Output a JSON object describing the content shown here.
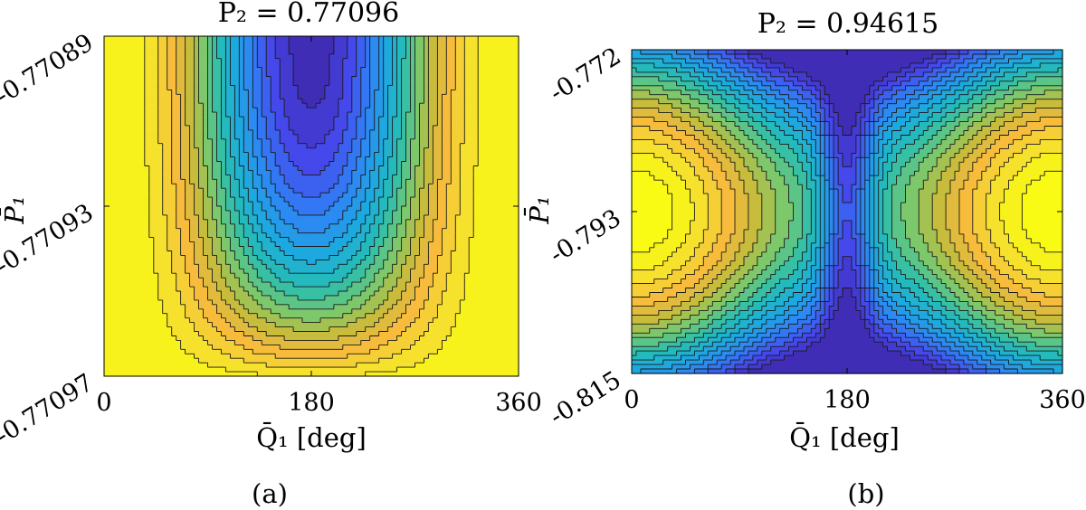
{
  "chart_data": [
    {
      "type": "contour",
      "panel": "a",
      "title": "P₂ = 0.77096",
      "xlabel": "Q̄₁ [deg]",
      "ylabel": "P̄₁",
      "xlim": [
        0,
        360
      ],
      "ylim": [
        -0.77097,
        -0.77089
      ],
      "xticks": [
        "0",
        "180",
        "360"
      ],
      "yticks": [
        "-0.77089",
        "-0.77093",
        "-0.77097"
      ],
      "colormap": "parula",
      "levels": 20,
      "pattern": "U-shaped valley of low values centred at 180 deg, reaching the top edge; high values (yellow) near 0 and 360 deg",
      "caption": "(a)"
    },
    {
      "type": "contour",
      "panel": "b",
      "title": "P₂ = 0.94615",
      "xlabel": "Q̄₁ [deg]",
      "ylabel": "P̄₁",
      "xlim": [
        0,
        360
      ],
      "ylim": [
        -0.815,
        -0.772
      ],
      "xticks": [
        "0",
        "180",
        "360"
      ],
      "yticks": [
        "-0.772",
        "-0.793",
        "-0.815"
      ],
      "colormap": "parula",
      "levels": 20,
      "pattern": "Narrow vertical channel of low values at 180 deg; two elliptical high-value islands centred near 0 and 360 deg at P̄₁ = -0.793",
      "caption": "(b)"
    }
  ]
}
